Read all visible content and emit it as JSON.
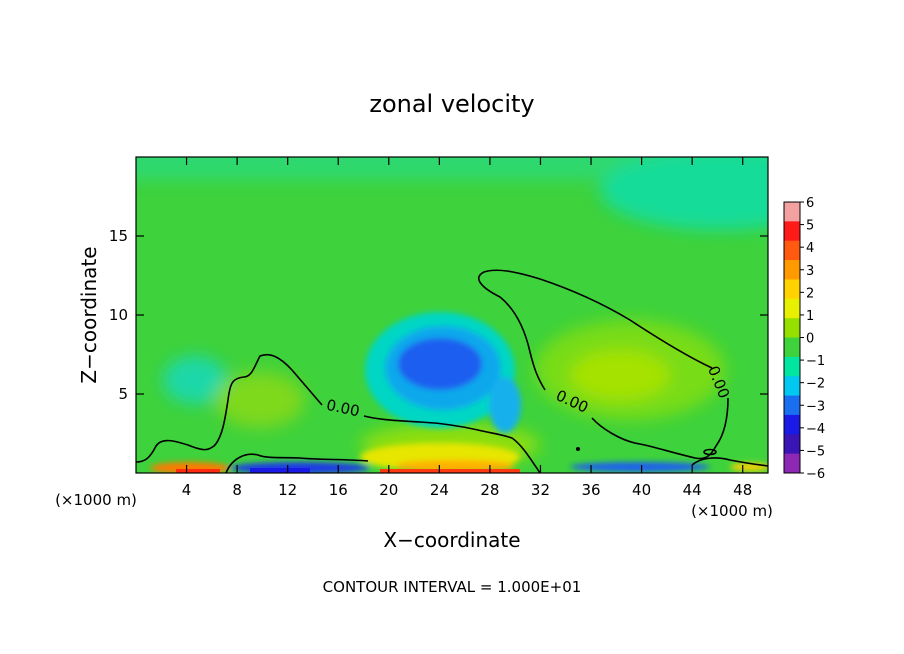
{
  "chart_data": {
    "type": "heatmap",
    "title": "zonal velocity",
    "xlabel": "X−coordinate",
    "ylabel": "Z−coordinate",
    "x_unit_left": "(×1000 m)",
    "x_unit_right": "(×1000 m)",
    "xlim": [
      0,
      50
    ],
    "ylim": [
      0,
      20
    ],
    "x_ticks": [
      4,
      8,
      12,
      16,
      20,
      24,
      28,
      32,
      36,
      40,
      44,
      48
    ],
    "y_ticks": [
      5,
      10,
      15
    ],
    "colorbar": {
      "levels": [
        6,
        5,
        4,
        3,
        2,
        1,
        0,
        -1,
        -2,
        -3,
        -4,
        -5,
        -6
      ],
      "level_labels": [
        "6",
        "5",
        "4",
        "3",
        "2",
        "1",
        "0",
        "−1",
        "−2",
        "−3",
        "−4",
        "−5",
        "−6"
      ],
      "colors": [
        "#f2a0a0",
        "#ff1a1a",
        "#ff5a10",
        "#ff9a00",
        "#ffd200",
        "#e6f000",
        "#96e000",
        "#3ed23c",
        "#00e6a0",
        "#00c8f0",
        "#1a6ef0",
        "#1a1ae6",
        "#3a14b4",
        "#8c28b4"
      ]
    },
    "contour_label": "0.00",
    "contour_interval_label": "CONTOUR INTERVAL = 1.000E+01"
  }
}
